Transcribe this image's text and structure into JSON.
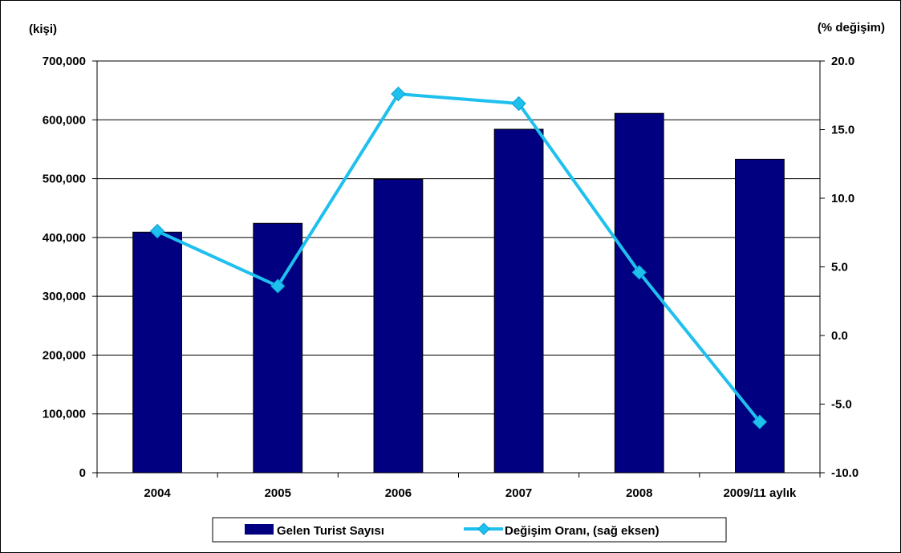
{
  "chart_data": {
    "type": "bar",
    "categories": [
      "2004",
      "2005",
      "2006",
      "2007",
      "2008",
      "2009/11 aylık"
    ],
    "series": [
      {
        "name": "Gelen Turist Sayısı",
        "type": "bar",
        "axis": "left",
        "color": "#000080",
        "values": [
          409000,
          424000,
          499000,
          584000,
          611000,
          533000
        ]
      },
      {
        "name": "Değişim Oranı, (sağ eksen)",
        "type": "line",
        "axis": "right",
        "color": "#1ec0ee",
        "marker": "diamond",
        "values": [
          7.6,
          3.6,
          17.6,
          16.9,
          4.6,
          -6.3
        ]
      }
    ],
    "left_axis": {
      "unit_label": "(kişi)",
      "ylim": [
        0,
        700000
      ],
      "ticks": [
        0,
        100000,
        200000,
        300000,
        400000,
        500000,
        600000,
        700000
      ],
      "tick_labels": [
        "0",
        "100,000",
        "200,000",
        "300,000",
        "400,000",
        "500,000",
        "600,000",
        "700,000"
      ]
    },
    "right_axis": {
      "unit_label": "(% değişim)",
      "ylim": [
        -10,
        20
      ],
      "ticks": [
        -10,
        -5,
        0,
        5,
        10,
        15,
        20
      ],
      "tick_labels": [
        "-10.0",
        "-5.0",
        "0.0",
        "5.0",
        "10.0",
        "15.0",
        "20.0"
      ]
    },
    "grid": true,
    "legend_position": "bottom"
  }
}
